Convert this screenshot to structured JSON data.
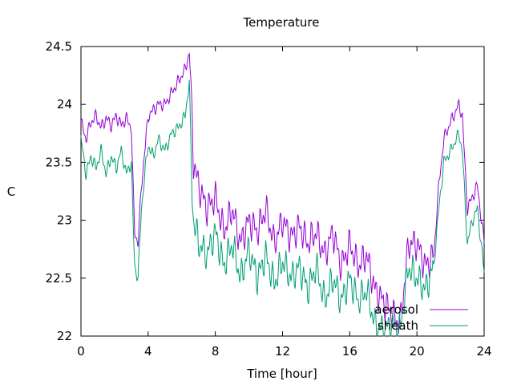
{
  "chart_data": {
    "type": "line",
    "title": "Temperature",
    "xlabel": "Time [hour]",
    "ylabel": "C",
    "xlim": [
      0,
      24
    ],
    "ylim": [
      22,
      24.5
    ],
    "xticks": [
      0,
      4,
      8,
      12,
      16,
      20,
      24
    ],
    "yticks": [
      22,
      22.5,
      23,
      23.5,
      24,
      24.5
    ],
    "ytick_labels": [
      "22",
      "22.5",
      "23",
      "23.5",
      "24",
      "24.5"
    ],
    "grid": false,
    "legend_position": "bottom-right",
    "series": [
      {
        "name": "aerosol",
        "color": "#9400d3",
        "points": [
          [
            0,
            23.85
          ],
          [
            0.3,
            23.7
          ],
          [
            0.6,
            23.85
          ],
          [
            0.9,
            23.9
          ],
          [
            1.2,
            23.8
          ],
          [
            1.5,
            23.88
          ],
          [
            1.8,
            23.82
          ],
          [
            2.1,
            23.9
          ],
          [
            2.4,
            23.82
          ],
          [
            2.7,
            23.88
          ],
          [
            3.0,
            23.8
          ],
          [
            3.1,
            23.3
          ],
          [
            3.2,
            22.9
          ],
          [
            3.4,
            22.8
          ],
          [
            3.6,
            23.3
          ],
          [
            3.8,
            23.6
          ],
          [
            4.0,
            23.9
          ],
          [
            4.3,
            23.95
          ],
          [
            4.6,
            24.0
          ],
          [
            5.0,
            24.0
          ],
          [
            5.4,
            24.1
          ],
          [
            5.8,
            24.2
          ],
          [
            6.2,
            24.3
          ],
          [
            6.45,
            24.45
          ],
          [
            6.6,
            24.0
          ],
          [
            6.7,
            23.5
          ],
          [
            7.0,
            23.3
          ],
          [
            7.5,
            23.1
          ],
          [
            8.0,
            23.2
          ],
          [
            8.5,
            22.9
          ],
          [
            9.0,
            23.1
          ],
          [
            9.5,
            22.8
          ],
          [
            10.0,
            23.0
          ],
          [
            10.5,
            22.9
          ],
          [
            11.0,
            23.1
          ],
          [
            11.5,
            22.8
          ],
          [
            12.0,
            23.0
          ],
          [
            12.5,
            22.85
          ],
          [
            13.0,
            22.95
          ],
          [
            13.5,
            22.8
          ],
          [
            14.0,
            22.9
          ],
          [
            14.5,
            22.7
          ],
          [
            15.0,
            22.9
          ],
          [
            15.5,
            22.6
          ],
          [
            16.0,
            22.8
          ],
          [
            16.5,
            22.6
          ],
          [
            17.0,
            22.7
          ],
          [
            17.5,
            22.4
          ],
          [
            18.0,
            22.3
          ],
          [
            18.5,
            22.2
          ],
          [
            19.0,
            22.1
          ],
          [
            19.5,
            22.8
          ],
          [
            20.0,
            22.8
          ],
          [
            20.5,
            22.6
          ],
          [
            21.0,
            22.7
          ],
          [
            21.3,
            23.3
          ],
          [
            21.6,
            23.7
          ],
          [
            22.0,
            23.85
          ],
          [
            22.5,
            24.0
          ],
          [
            22.7,
            23.9
          ],
          [
            23.0,
            23.1
          ],
          [
            23.3,
            23.2
          ],
          [
            23.6,
            23.3
          ],
          [
            24.0,
            22.8
          ]
        ]
      },
      {
        "name": "sheath",
        "color": "#009e73",
        "points": [
          [
            0,
            23.7
          ],
          [
            0.3,
            23.4
          ],
          [
            0.6,
            23.55
          ],
          [
            0.9,
            23.45
          ],
          [
            1.2,
            23.6
          ],
          [
            1.5,
            23.4
          ],
          [
            1.8,
            23.55
          ],
          [
            2.1,
            23.45
          ],
          [
            2.4,
            23.6
          ],
          [
            2.7,
            23.4
          ],
          [
            3.0,
            23.5
          ],
          [
            3.1,
            23.0
          ],
          [
            3.2,
            22.6
          ],
          [
            3.4,
            22.5
          ],
          [
            3.6,
            23.1
          ],
          [
            3.8,
            23.4
          ],
          [
            4.0,
            23.65
          ],
          [
            4.3,
            23.55
          ],
          [
            4.6,
            23.7
          ],
          [
            5.0,
            23.6
          ],
          [
            5.4,
            23.75
          ],
          [
            5.8,
            23.8
          ],
          [
            6.2,
            23.9
          ],
          [
            6.45,
            24.2
          ],
          [
            6.6,
            23.3
          ],
          [
            6.7,
            23.0
          ],
          [
            7.0,
            22.8
          ],
          [
            7.5,
            22.7
          ],
          [
            8.0,
            22.9
          ],
          [
            8.5,
            22.6
          ],
          [
            9.0,
            22.8
          ],
          [
            9.5,
            22.5
          ],
          [
            10.0,
            22.75
          ],
          [
            10.5,
            22.5
          ],
          [
            11.0,
            22.7
          ],
          [
            11.5,
            22.45
          ],
          [
            12.0,
            22.65
          ],
          [
            12.5,
            22.5
          ],
          [
            13.0,
            22.6
          ],
          [
            13.5,
            22.4
          ],
          [
            14.0,
            22.6
          ],
          [
            14.5,
            22.3
          ],
          [
            15.0,
            22.5
          ],
          [
            15.5,
            22.3
          ],
          [
            16.0,
            22.5
          ],
          [
            16.5,
            22.3
          ],
          [
            17.0,
            22.4
          ],
          [
            17.5,
            22.1
          ],
          [
            18.0,
            22.05
          ],
          [
            18.5,
            22.1
          ],
          [
            19.0,
            22.05
          ],
          [
            19.5,
            22.6
          ],
          [
            20.0,
            22.5
          ],
          [
            20.5,
            22.4
          ],
          [
            21.0,
            22.6
          ],
          [
            21.3,
            23.1
          ],
          [
            21.6,
            23.5
          ],
          [
            22.0,
            23.6
          ],
          [
            22.5,
            23.75
          ],
          [
            22.7,
            23.6
          ],
          [
            23.0,
            22.8
          ],
          [
            23.3,
            23.0
          ],
          [
            23.6,
            23.1
          ],
          [
            24.0,
            22.55
          ]
        ]
      }
    ]
  }
}
